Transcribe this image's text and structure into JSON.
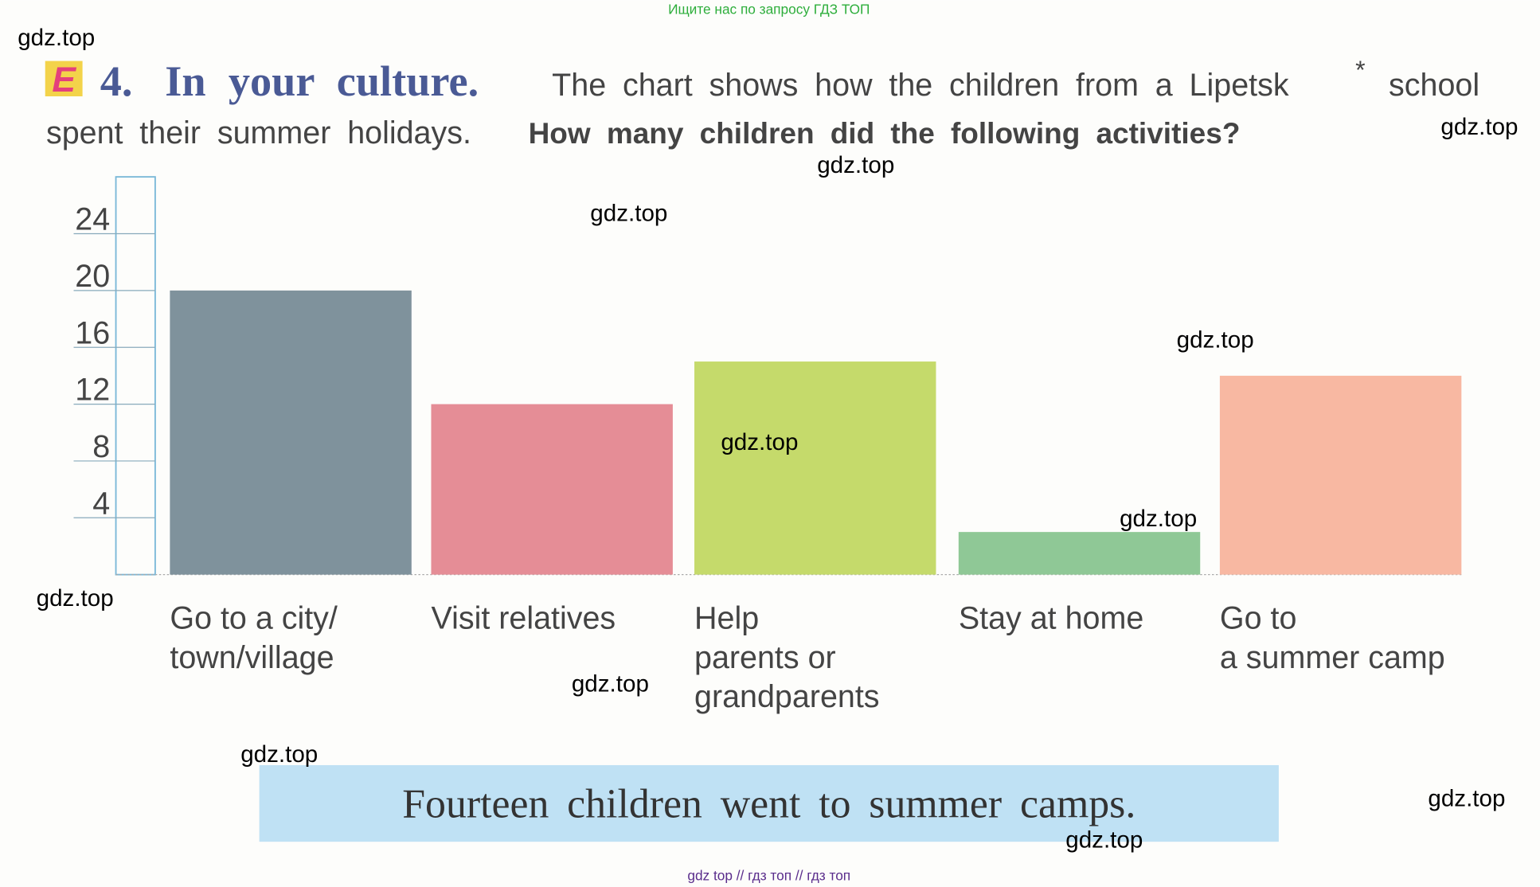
{
  "top_note": "Ищите нас по запросу ГДЗ ТОП",
  "header": {
    "badge": "E",
    "number": "4.",
    "title": "In your culture.",
    "text1": "The chart shows how the children from a Lipetsk",
    "asterisk": "*",
    "text2": "school",
    "line2": "spent their summer holidays.",
    "question": "How many children did the following activities?"
  },
  "chart_data": {
    "type": "bar",
    "categories": [
      "Go to a city/\ntown/village",
      "Visit relatives",
      "Help\nparents or\ngrandparents",
      "Stay at home",
      "Go to\na summer camp"
    ],
    "values": [
      20,
      12,
      15,
      3,
      14
    ],
    "colors": [
      "#7f929c",
      "#e58d96",
      "#c5da6b",
      "#8fc896",
      "#f8b8a2"
    ],
    "ylim": [
      0,
      28
    ],
    "yticks": [
      4,
      8,
      12,
      16,
      20,
      24
    ]
  },
  "example": "Fourteen children went to summer camps.",
  "watermarks": [
    "gdz.top",
    "gdz.top",
    "gdz.top",
    "gdz.top",
    "gdz.top",
    "gdz.top",
    "gdz.top",
    "gdz.top",
    "gdz.top",
    "gdz.top",
    "gdz.top",
    "gdz.top"
  ],
  "footer": "gdz top  //  гдз топ  //  гдз топ"
}
